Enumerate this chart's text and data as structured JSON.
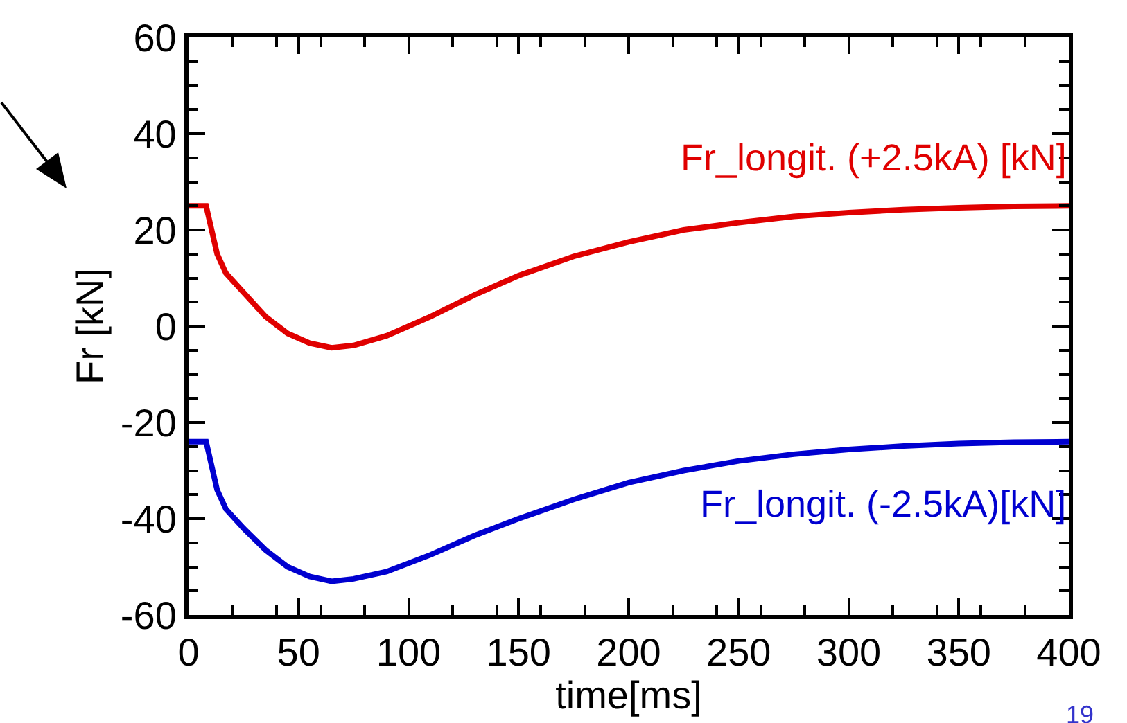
{
  "chart_data": {
    "type": "line",
    "xlabel": "time[ms]",
    "ylabel": "Fr [kN]",
    "xlim": [
      0,
      400
    ],
    "xticks": [
      0,
      50,
      100,
      150,
      200,
      250,
      300,
      350,
      400
    ],
    "ylim": [
      -60,
      60
    ],
    "yticks": [
      -60,
      -40,
      -20,
      0,
      20,
      40,
      60
    ],
    "grid": false,
    "legend": false,
    "marker": "none",
    "line_style": "solid",
    "annotations": [
      "19"
    ],
    "series": [
      {
        "name": "Fr_longit. (+2.5kA) [kN]",
        "color": "#e00000",
        "x": [
          0,
          8,
          10,
          13,
          17,
          25,
          35,
          45,
          55,
          65,
          75,
          90,
          110,
          130,
          150,
          175,
          200,
          225,
          250,
          275,
          300,
          325,
          350,
          375,
          400
        ],
        "values": [
          25,
          25,
          21,
          15,
          11,
          7,
          2,
          -1.5,
          -3.5,
          -4.5,
          -4,
          -2,
          2,
          6.5,
          10.5,
          14.5,
          17.5,
          20,
          21.5,
          22.8,
          23.6,
          24.2,
          24.6,
          24.9,
          25
        ]
      },
      {
        "name": "Fr_longit. (-2.5kA)[kN]",
        "color": "#0000d0",
        "x": [
          0,
          8,
          10,
          13,
          17,
          25,
          35,
          45,
          55,
          65,
          75,
          90,
          110,
          130,
          150,
          175,
          200,
          225,
          250,
          275,
          300,
          325,
          350,
          375,
          400
        ],
        "values": [
          -24,
          -24,
          -28,
          -34,
          -38,
          -42,
          -46.5,
          -50,
          -52,
          -53,
          -52.5,
          -51,
          -47.5,
          -43.5,
          -40,
          -36,
          -32.5,
          -30,
          -28,
          -26.6,
          -25.6,
          -24.9,
          -24.4,
          -24.1,
          -24
        ]
      }
    ]
  }
}
